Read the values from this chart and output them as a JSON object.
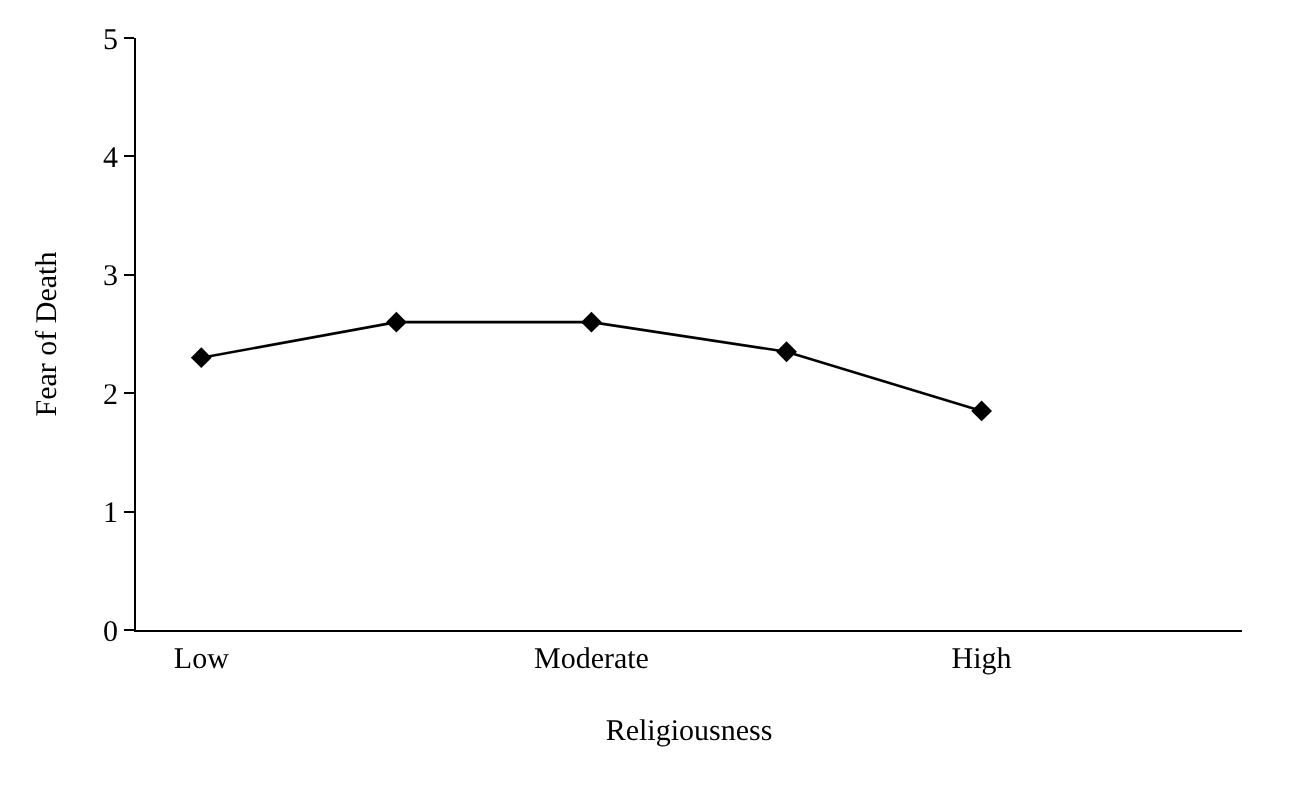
{
  "chart_data": {
    "type": "line",
    "xlabel": "Religiousness",
    "ylabel": "Fear of Death",
    "categories": [
      "Low",
      null,
      "Moderate",
      null,
      "High",
      null
    ],
    "series": [
      {
        "color": "#000000",
        "values": [
          2.3,
          2.6,
          2.6,
          2.35,
          1.85,
          null
        ]
      }
    ],
    "ylim": [
      0,
      5
    ],
    "yticks": [
      0,
      1,
      2,
      3,
      4,
      5
    ],
    "grid": false,
    "marker": "diamond",
    "line_style": "solid"
  }
}
